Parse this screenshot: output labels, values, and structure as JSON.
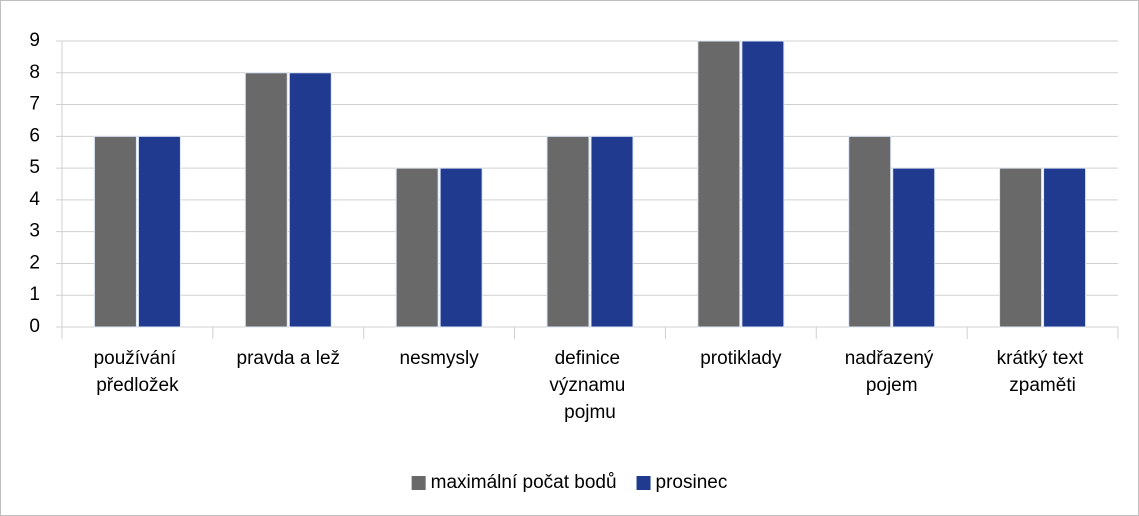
{
  "chart_data": {
    "type": "bar",
    "categories": [
      "používání předložek",
      "pravda a lež",
      "nesmysly",
      "definice významu pojmu",
      "protiklady",
      "nadřazený pojem",
      "krátký text zpaměti"
    ],
    "series": [
      {
        "name": "maximální počat bodů",
        "color": "#696969",
        "values": [
          6,
          8,
          5,
          6,
          9,
          6,
          5
        ]
      },
      {
        "name": "prosinec",
        "color": "#1f3a8f",
        "values": [
          6,
          8,
          5,
          6,
          9,
          5,
          5
        ]
      }
    ],
    "ylim": [
      0,
      9
    ],
    "yticks": [
      0,
      1,
      2,
      3,
      4,
      5,
      6,
      7,
      8,
      9
    ],
    "grid": true,
    "legend": "bottom"
  }
}
